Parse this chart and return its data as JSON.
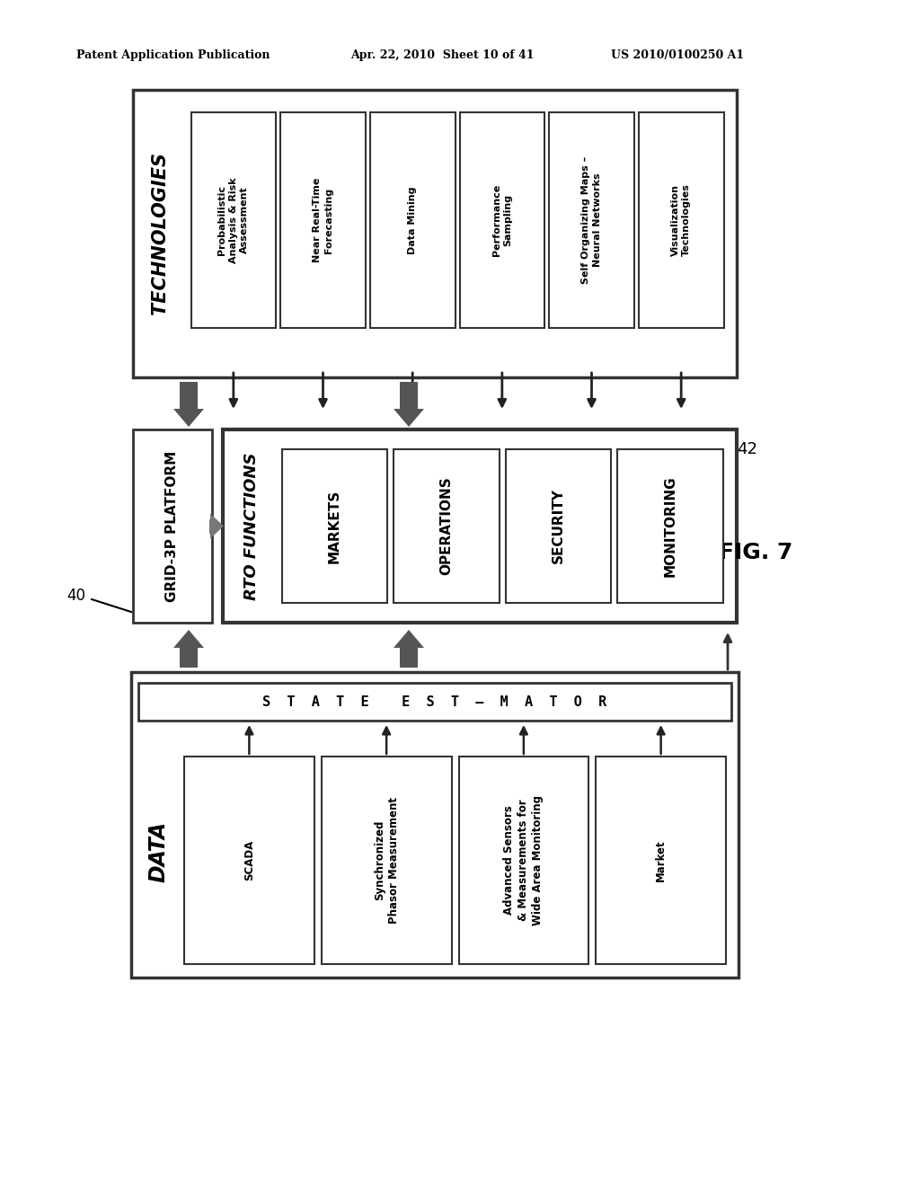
{
  "bg_color": "#ffffff",
  "header_text1": "Patent Application Publication",
  "header_text2": "Apr. 22, 2010  Sheet 10 of 41",
  "header_text3": "US 2010/0100250 A1",
  "fig_label": "FIG. 7",
  "label_40": "40",
  "label_42": "42",
  "tech_box": {
    "label": "TECHNOLOGIES",
    "columns": [
      "Probabilistic\nAnalysis & Risk\nAssessment",
      "Near Real-Time\nForecasting",
      "Data Mining",
      "Performance\nSampling",
      "Self Organizing Maps –\nNeural Networks",
      "Visualization\nTechnologies"
    ]
  },
  "grid_box": {
    "label": "GRID-3P PLATFORM"
  },
  "rto_box": {
    "label": "RTO FUNCTIONS",
    "columns": [
      "MARKETS",
      "OPERATIONS",
      "SECURITY",
      "MONITORING"
    ]
  },
  "data_box": {
    "label": "DATA",
    "state_estimator": "S  T  A  T  E    E  S  T  –  M  A  T  O  R",
    "columns": [
      "SCADA",
      "Synchronized\nPhasor Measurement",
      "Advanced Sensors\n& Measurements for\nWide Area Monitoring",
      "Market"
    ]
  }
}
